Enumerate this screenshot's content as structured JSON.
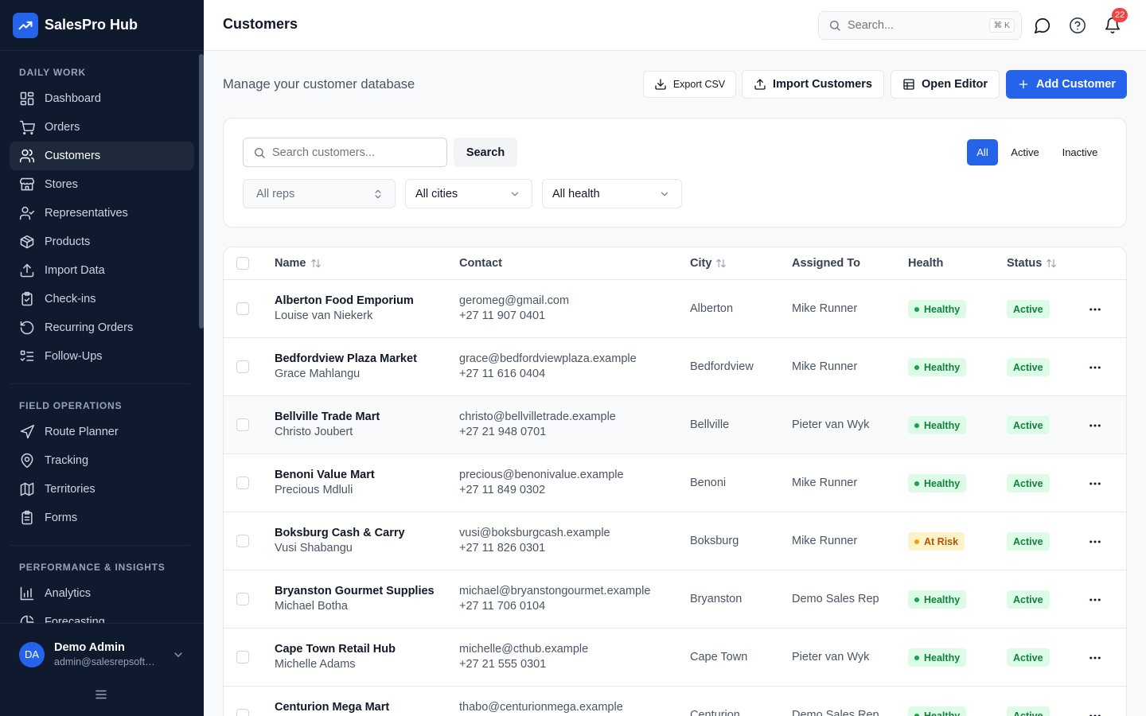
{
  "app": {
    "name": "SalesPro Hub"
  },
  "sidebar": {
    "sections": [
      {
        "title": "DAILY WORK",
        "items": [
          {
            "label": "Dashboard",
            "icon": "dashboard-icon"
          },
          {
            "label": "Orders",
            "icon": "cart-icon"
          },
          {
            "label": "Customers",
            "icon": "users-icon",
            "active": true
          },
          {
            "label": "Stores",
            "icon": "store-icon"
          },
          {
            "label": "Representatives",
            "icon": "user-check-icon"
          },
          {
            "label": "Products",
            "icon": "package-icon"
          },
          {
            "label": "Import Data",
            "icon": "upload-icon"
          },
          {
            "label": "Check-ins",
            "icon": "clipboard-check-icon"
          },
          {
            "label": "Recurring Orders",
            "icon": "rotate-icon"
          },
          {
            "label": "Follow-Ups",
            "icon": "list-todo-icon"
          }
        ]
      },
      {
        "title": "FIELD OPERATIONS",
        "items": [
          {
            "label": "Route Planner",
            "icon": "navigation-icon"
          },
          {
            "label": "Tracking",
            "icon": "map-pin-icon"
          },
          {
            "label": "Territories",
            "icon": "map-icon"
          },
          {
            "label": "Forms",
            "icon": "form-icon"
          }
        ]
      },
      {
        "title": "PERFORMANCE & INSIGHTS",
        "items": [
          {
            "label": "Analytics",
            "icon": "bar-chart-icon"
          },
          {
            "label": "Forecasting",
            "icon": "forecast-icon"
          }
        ]
      }
    ],
    "user": {
      "initials": "DA",
      "name": "Demo Admin",
      "email": "admin@salesrepsoftware.example"
    }
  },
  "topbar": {
    "title": "Customers",
    "search_placeholder": "Search...",
    "shortcut": "⌘ K",
    "notification_count": "22"
  },
  "header": {
    "subtitle": "Manage your customer database",
    "export_label": "Export CSV",
    "import_label": "Import Customers",
    "editor_label": "Open Editor",
    "add_label": "Add Customer"
  },
  "filters": {
    "search_placeholder": "Search customers...",
    "search_button": "Search",
    "tabs": [
      "All",
      "Active",
      "Inactive"
    ],
    "rep_select": "All reps",
    "city_select": "All cities",
    "health_select": "All health"
  },
  "table": {
    "columns": [
      "Name",
      "Contact",
      "City",
      "Assigned To",
      "Health",
      "Status"
    ],
    "rows": [
      {
        "name": "Alberton Food Emporium",
        "contact_person": "Louise van Niekerk",
        "email": "geromeg@gmail.com",
        "phone": "+27 11 907 0401",
        "city": "Alberton",
        "rep": "Mike Runner",
        "health": "Healthy",
        "status": "Active"
      },
      {
        "name": "Bedfordview Plaza Market",
        "contact_person": "Grace Mahlangu",
        "email": "grace@bedfordviewplaza.example",
        "phone": "+27 11 616 0404",
        "city": "Bedfordview",
        "rep": "Mike Runner",
        "health": "Healthy",
        "status": "Active"
      },
      {
        "name": "Bellville Trade Mart",
        "contact_person": "Christo Joubert",
        "email": "christo@bellvilletrade.example",
        "phone": "+27 21 948 0701",
        "city": "Bellville",
        "rep": "Pieter van Wyk",
        "health": "Healthy",
        "status": "Active"
      },
      {
        "name": "Benoni Value Mart",
        "contact_person": "Precious Mdluli",
        "email": "precious@benonivalue.example",
        "phone": "+27 11 849 0302",
        "city": "Benoni",
        "rep": "Mike Runner",
        "health": "Healthy",
        "status": "Active"
      },
      {
        "name": "Boksburg Cash & Carry",
        "contact_person": "Vusi Shabangu",
        "email": "vusi@boksburgcash.example",
        "phone": "+27 11 826 0301",
        "city": "Boksburg",
        "rep": "Mike Runner",
        "health": "At Risk",
        "status": "Active"
      },
      {
        "name": "Bryanston Gourmet Supplies",
        "contact_person": "Michael Botha",
        "email": "michael@bryanstongourmet.example",
        "phone": "+27 11 706 0104",
        "city": "Bryanston",
        "rep": "Demo Sales Rep",
        "health": "Healthy",
        "status": "Active"
      },
      {
        "name": "Cape Town Retail Hub",
        "contact_person": "Michelle Adams",
        "email": "michelle@cthub.example",
        "phone": "+27 21 555 0301",
        "city": "Cape Town",
        "rep": "Pieter van Wyk",
        "health": "Healthy",
        "status": "Active"
      },
      {
        "name": "Centurion Mega Mart",
        "contact_person": "",
        "email": "thabo@centurionmega.example",
        "phone": "",
        "city": "Centurion",
        "rep": "Demo Sales Rep",
        "health": "Healthy",
        "status": "Active"
      }
    ]
  }
}
